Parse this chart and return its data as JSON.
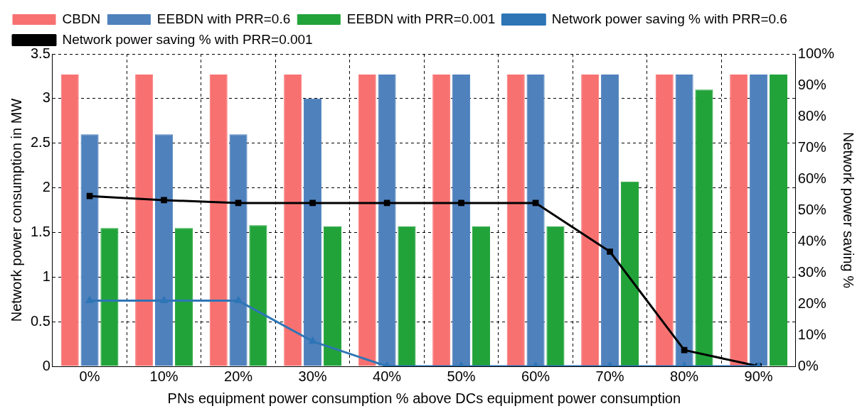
{
  "chart_data": {
    "type": "bar",
    "xlabel": "PNs equipment power consumption % above DCs equipment power consumption",
    "ylabel": "Network power consumption in MW",
    "y2label": "Network power saving %",
    "categories": [
      "0%",
      "10%",
      "20%",
      "30%",
      "40%",
      "50%",
      "60%",
      "70%",
      "80%",
      "90%"
    ],
    "series": [
      {
        "name": "CBDN",
        "color": "#f87171",
        "values": [
          3.27,
          3.27,
          3.27,
          3.27,
          3.27,
          3.27,
          3.27,
          3.27,
          3.27,
          3.27
        ]
      },
      {
        "name": "EEBDN with PRR=0.6",
        "color": "#4f81bd",
        "values": [
          2.6,
          2.6,
          2.6,
          3.0,
          3.27,
          3.27,
          3.27,
          3.27,
          3.27,
          3.27
        ]
      },
      {
        "name": "EEBDN with PRR=0.001",
        "color": "#22a33a",
        "values": [
          1.55,
          1.55,
          1.58,
          1.57,
          1.57,
          1.57,
          1.57,
          2.07,
          3.1,
          3.27
        ]
      },
      {
        "name": "Network power saving % with PRR=0.6",
        "type": "line",
        "axis": "y2",
        "marker": "triangle",
        "color": "#2e75b6",
        "values": [
          21,
          21,
          21,
          8,
          0,
          0,
          0,
          0,
          0,
          0
        ]
      },
      {
        "name": "Network power saving % with PRR=0.001",
        "type": "line",
        "axis": "y2",
        "marker": "square",
        "color": "#000000",
        "values": [
          54.5,
          53.2,
          52.3,
          52.3,
          52.3,
          52.3,
          52.3,
          36.7,
          5.2,
          0
        ]
      }
    ],
    "ylim": [
      0,
      3.5
    ],
    "yticks": [
      0,
      0.5,
      1,
      1.5,
      2,
      2.5,
      3,
      3.5
    ],
    "y2lim": [
      0,
      100
    ],
    "y2ticks": [
      {
        "value": 0,
        "label": "0%"
      },
      {
        "value": 10,
        "label": "10%"
      },
      {
        "value": 20,
        "label": "20%"
      },
      {
        "value": 30,
        "label": "30%"
      },
      {
        "value": 40,
        "label": "40%"
      },
      {
        "value": 50,
        "label": "50%"
      },
      {
        "value": 60,
        "label": "60%"
      },
      {
        "value": 70,
        "label": "70%"
      },
      {
        "value": 80,
        "label": "80%"
      },
      {
        "value": 90,
        "label": "90%"
      },
      {
        "value": 100,
        "label": "100%"
      }
    ],
    "grid": true,
    "legend": "top",
    "line_style": "solid"
  }
}
